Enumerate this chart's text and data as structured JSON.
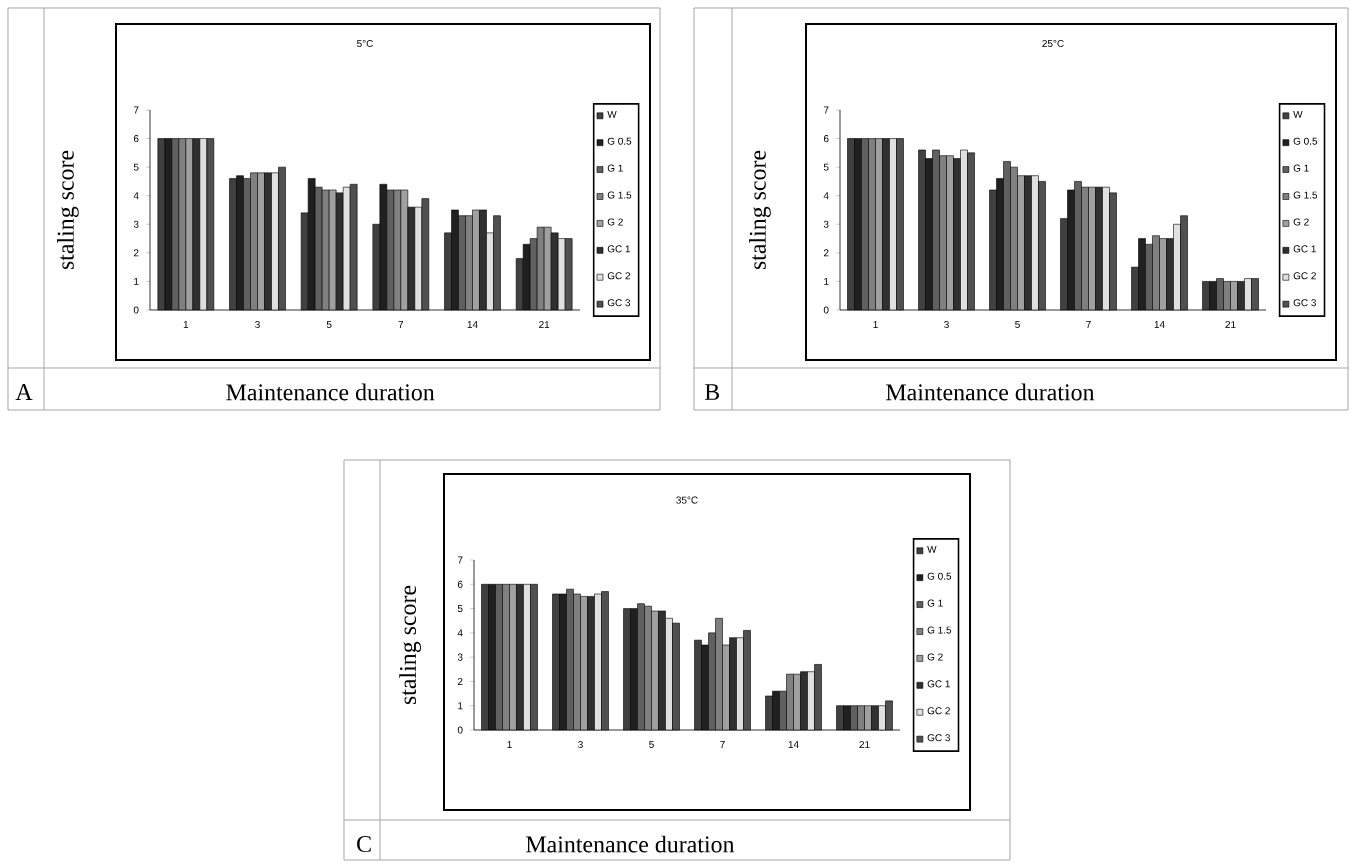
{
  "chart_data": [
    {
      "type": "bar",
      "title": "5°C",
      "xlabel": "Maintenance duration",
      "ylabel": "staling score",
      "annotations": [
        "A"
      ],
      "categories": [
        "1",
        "3",
        "5",
        "7",
        "14",
        "21"
      ],
      "ylim": [
        0,
        7
      ],
      "yticks": [
        0,
        1,
        2,
        3,
        4,
        5,
        6,
        7
      ],
      "legend": "right",
      "series": [
        {
          "name": "W",
          "color": "#404040",
          "values": [
            6,
            4.6,
            3.4,
            3.0,
            2.7,
            1.8
          ]
        },
        {
          "name": "G 0.5",
          "color": "#202020",
          "values": [
            6,
            4.7,
            4.6,
            4.4,
            3.5,
            2.3
          ]
        },
        {
          "name": "G 1",
          "color": "#606060",
          "values": [
            6,
            4.6,
            4.3,
            4.2,
            3.3,
            2.5
          ]
        },
        {
          "name": "G 1.5",
          "color": "#808080",
          "values": [
            6,
            4.8,
            4.2,
            4.2,
            3.3,
            2.9
          ]
        },
        {
          "name": "G 2",
          "color": "#a0a0a0",
          "values": [
            6,
            4.8,
            4.2,
            4.2,
            3.5,
            2.9
          ]
        },
        {
          "name": "GC 1",
          "color": "#303030",
          "values": [
            6,
            4.8,
            4.1,
            3.6,
            3.5,
            2.7
          ]
        },
        {
          "name": "GC 2",
          "color": "#e0e0e0",
          "values": [
            6,
            4.8,
            4.3,
            3.6,
            2.7,
            2.5
          ]
        },
        {
          "name": "GC 3",
          "color": "#505050",
          "values": [
            6,
            5.0,
            4.4,
            3.9,
            3.3,
            2.5
          ]
        }
      ]
    },
    {
      "type": "bar",
      "title": "25°C",
      "xlabel": "Maintenance duration",
      "ylabel": "staling score",
      "annotations": [
        "B"
      ],
      "categories": [
        "1",
        "3",
        "5",
        "7",
        "14",
        "21"
      ],
      "ylim": [
        0,
        7
      ],
      "yticks": [
        0,
        1,
        2,
        3,
        4,
        5,
        6,
        7
      ],
      "legend": "right",
      "series": [
        {
          "name": "W",
          "color": "#404040",
          "values": [
            6,
            5.6,
            4.2,
            3.2,
            1.5,
            1.0
          ]
        },
        {
          "name": "G 0.5",
          "color": "#202020",
          "values": [
            6,
            5.3,
            4.6,
            4.2,
            2.5,
            1.0
          ]
        },
        {
          "name": "G 1",
          "color": "#606060",
          "values": [
            6,
            5.6,
            5.2,
            4.5,
            2.3,
            1.1
          ]
        },
        {
          "name": "G 1.5",
          "color": "#808080",
          "values": [
            6,
            5.4,
            5.0,
            4.3,
            2.6,
            1.0
          ]
        },
        {
          "name": "G 2",
          "color": "#a0a0a0",
          "values": [
            6,
            5.4,
            4.7,
            4.3,
            2.5,
            1.0
          ]
        },
        {
          "name": "GC 1",
          "color": "#303030",
          "values": [
            6,
            5.3,
            4.7,
            4.3,
            2.5,
            1.0
          ]
        },
        {
          "name": "GC 2",
          "color": "#e0e0e0",
          "values": [
            6,
            5.6,
            4.7,
            4.3,
            3.0,
            1.1
          ]
        },
        {
          "name": "GC 3",
          "color": "#505050",
          "values": [
            6,
            5.5,
            4.5,
            4.1,
            3.3,
            1.1
          ]
        }
      ]
    },
    {
      "type": "bar",
      "title": "35°C",
      "xlabel": "Maintenance duration",
      "ylabel": "staling score",
      "annotations": [
        "C"
      ],
      "categories": [
        "1",
        "3",
        "5",
        "7",
        "14",
        "21"
      ],
      "ylim": [
        0,
        7
      ],
      "yticks": [
        0,
        1,
        2,
        3,
        4,
        5,
        6,
        7
      ],
      "legend": "right",
      "series": [
        {
          "name": "W",
          "color": "#404040",
          "values": [
            6,
            5.6,
            5.0,
            3.7,
            1.4,
            1.0
          ]
        },
        {
          "name": "G 0.5",
          "color": "#202020",
          "values": [
            6,
            5.6,
            5.0,
            3.5,
            1.6,
            1.0
          ]
        },
        {
          "name": "G 1",
          "color": "#606060",
          "values": [
            6,
            5.8,
            5.2,
            4.0,
            1.6,
            1.0
          ]
        },
        {
          "name": "G 1.5",
          "color": "#808080",
          "values": [
            6,
            5.6,
            5.1,
            4.6,
            2.3,
            1.0
          ]
        },
        {
          "name": "G 2",
          "color": "#a0a0a0",
          "values": [
            6,
            5.5,
            4.9,
            3.5,
            2.3,
            1.0
          ]
        },
        {
          "name": "GC 1",
          "color": "#303030",
          "values": [
            6,
            5.5,
            4.9,
            3.8,
            2.4,
            1.0
          ]
        },
        {
          "name": "GC 2",
          "color": "#e0e0e0",
          "values": [
            6,
            5.6,
            4.6,
            3.8,
            2.4,
            1.0
          ]
        },
        {
          "name": "GC 3",
          "color": "#505050",
          "values": [
            6,
            5.7,
            4.4,
            4.1,
            2.7,
            1.2
          ]
        }
      ]
    }
  ]
}
